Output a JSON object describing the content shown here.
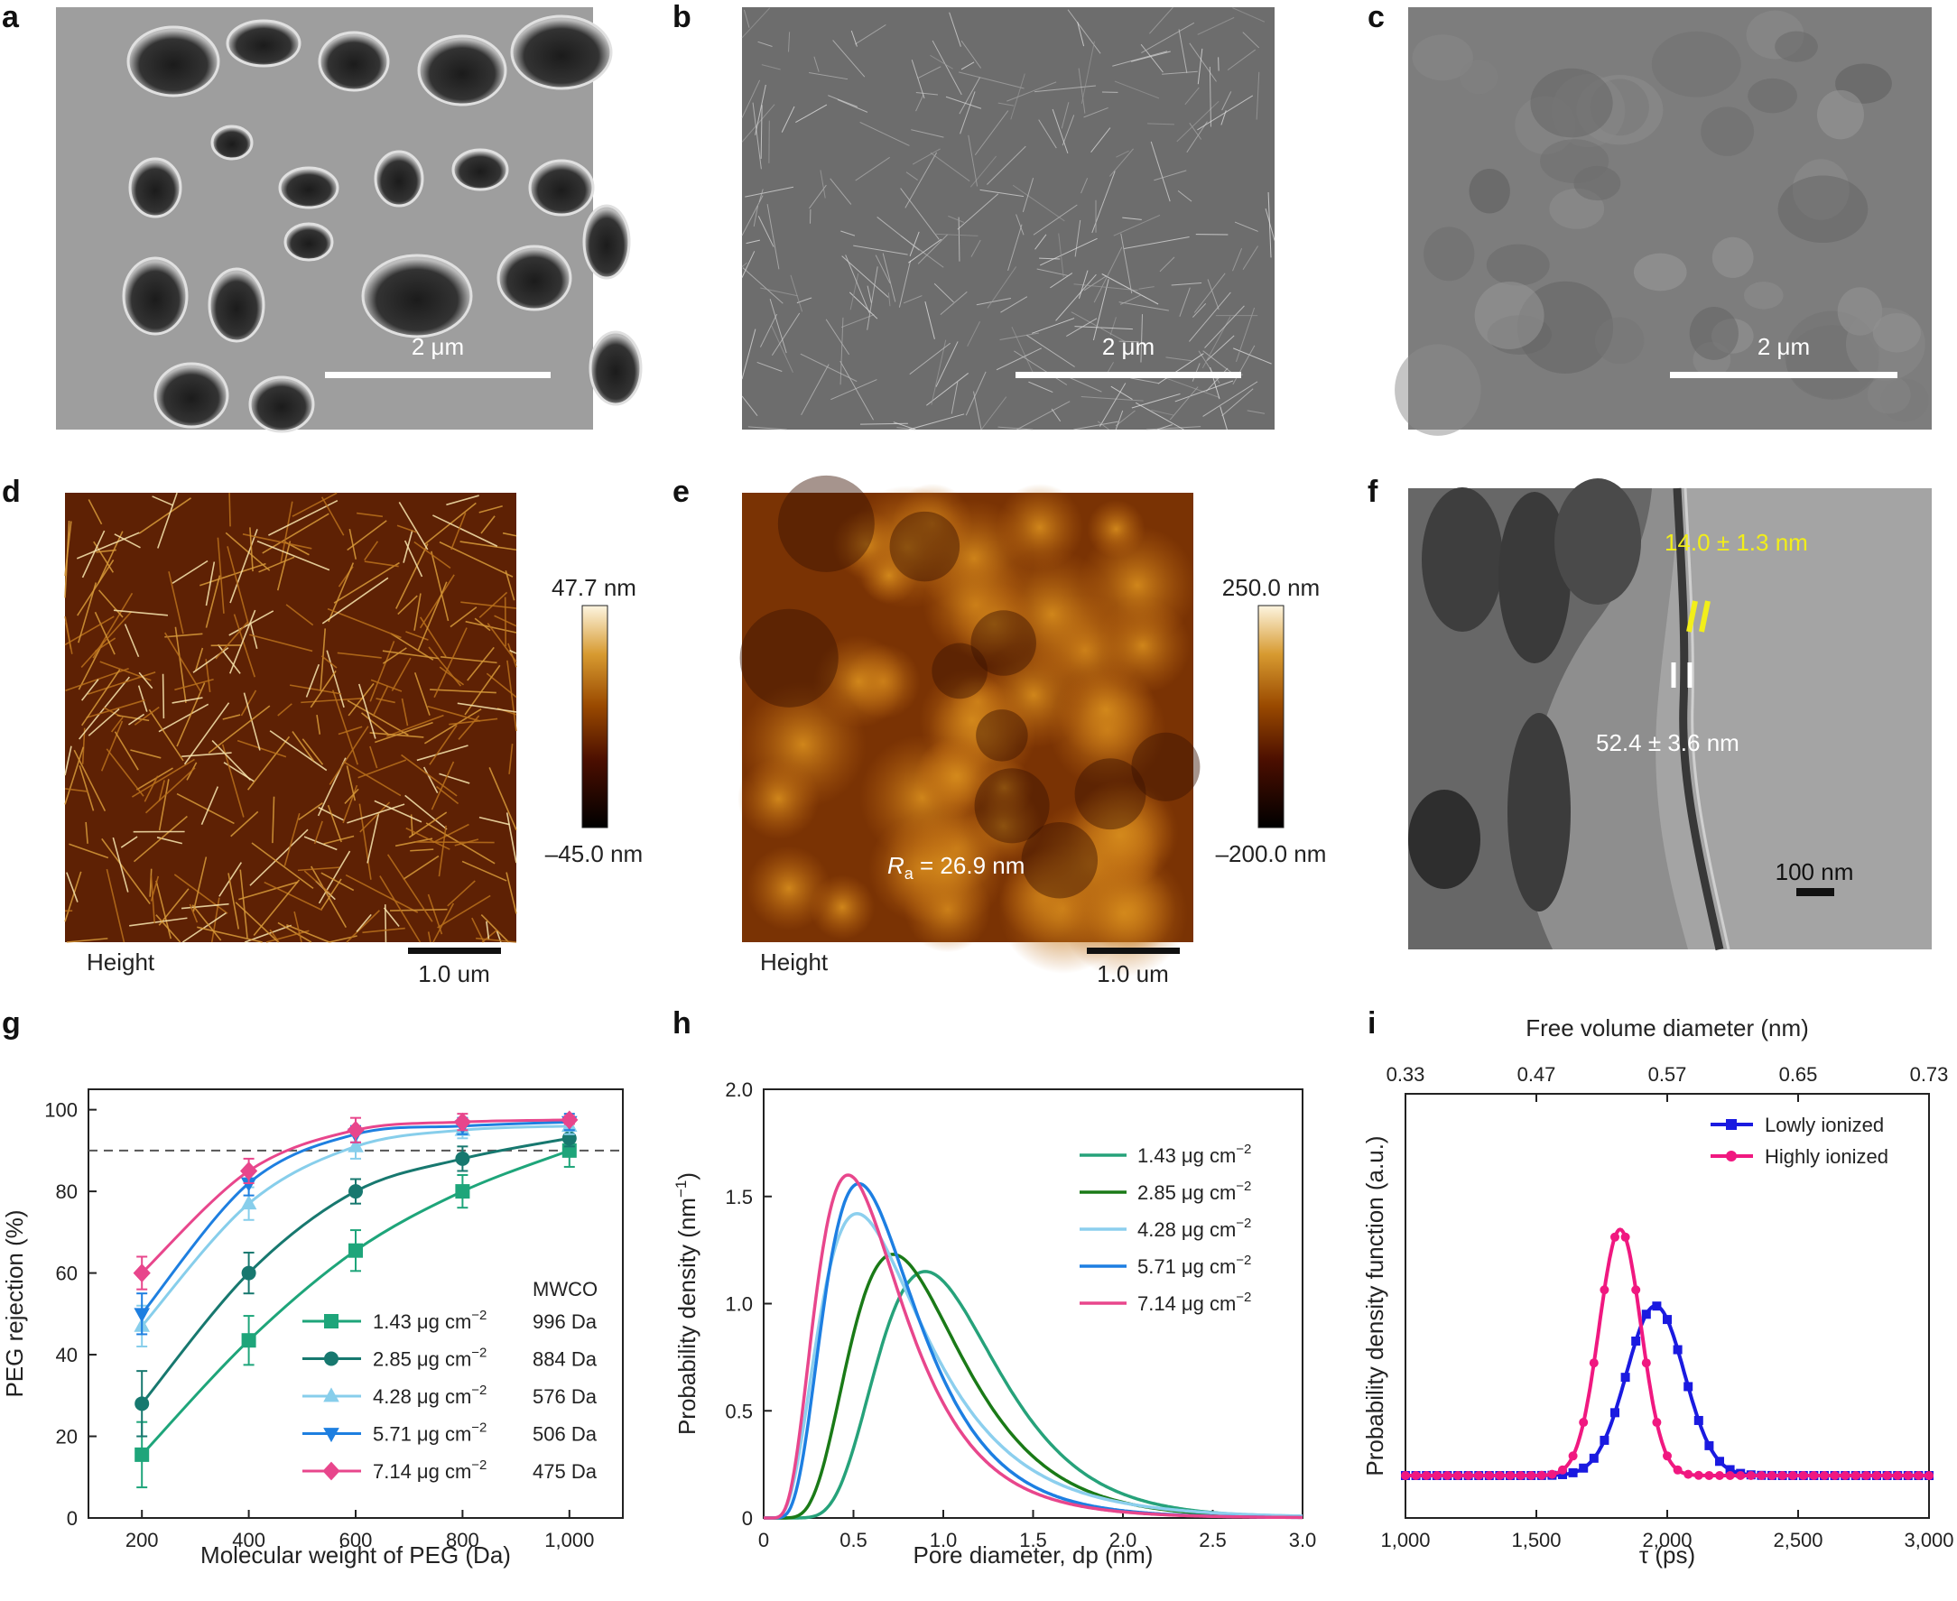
{
  "panels": {
    "a": {
      "label": "a",
      "scale": "2 μm"
    },
    "b": {
      "label": "b",
      "scale": "2 μm"
    },
    "c": {
      "label": "c",
      "scale": "2 μm"
    },
    "d": {
      "label": "d",
      "cb_max": "47.7 nm",
      "cb_min": "–45.0 nm",
      "mode": "Height",
      "scale": "1.0 um"
    },
    "e": {
      "label": "e",
      "cb_max": "250.0 nm",
      "cb_min": "–200.0 nm",
      "mode": "Height",
      "scale": "1.0 um",
      "ra_symbol": "R",
      "ra_sub": "a",
      "ra_value": " = 26.9 nm"
    },
    "f": {
      "label": "f",
      "m1": "14.0 ± 1.3 nm",
      "m2": "52.4 ± 3.6 nm",
      "scale": "100 nm"
    },
    "g": {
      "label": "g"
    },
    "h": {
      "label": "h"
    },
    "i": {
      "label": "i"
    }
  },
  "colors": {
    "s143": "#1ea57a",
    "s285": "#17786f",
    "s428": "#87ceeb",
    "s571": "#1e7fe0",
    "s714": "#e8468c",
    "h143": "#26a27a",
    "h285": "#1a7a17",
    "h428": "#8ccfee",
    "h571": "#1d7fe2",
    "h714": "#e8468c",
    "lowly": "#1a1ae0",
    "highly": "#f01880",
    "ref_line": "#555555"
  },
  "chart_data": [
    {
      "id": "g",
      "type": "line",
      "title": "",
      "xlabel": "Molecular weight of PEG (Da)",
      "ylabel": "PEG rejection (%)",
      "xlim": [
        100,
        1100
      ],
      "ylim": [
        0,
        105
      ],
      "xticks": [
        200,
        400,
        600,
        800,
        1000
      ],
      "xtick_labels": [
        "200",
        "400",
        "600",
        "800",
        "1,000"
      ],
      "yticks": [
        0,
        20,
        40,
        60,
        80,
        100
      ],
      "ytick_labels": [
        "0",
        "20",
        "40",
        "60",
        "80",
        "100"
      ],
      "reference_line": 90,
      "legend_header": "MWCO",
      "x": [
        200,
        400,
        600,
        800,
        1000
      ],
      "series": [
        {
          "name": "1.43 μg cm",
          "sup": "−2",
          "mwco": "996 Da",
          "marker": "square",
          "color_key": "s143",
          "values": [
            15.5,
            43.5,
            65.5,
            80,
            90
          ],
          "errors": [
            8,
            6,
            5,
            4,
            4
          ]
        },
        {
          "name": "2.85 μg cm",
          "sup": "−2",
          "mwco": "884 Da",
          "marker": "circle",
          "color_key": "s285",
          "values": [
            28,
            60,
            80,
            88,
            93
          ],
          "errors": [
            8,
            5,
            3,
            3,
            2
          ]
        },
        {
          "name": "4.28 μg cm",
          "sup": "−2",
          "mwco": "576 Da",
          "marker": "triangle-up",
          "color_key": "s428",
          "values": [
            47,
            77,
            91,
            95,
            96
          ],
          "errors": [
            5,
            4,
            3,
            2,
            2
          ]
        },
        {
          "name": "5.71 μg cm",
          "sup": "−2",
          "mwco": "506 Da",
          "marker": "triangle-down",
          "color_key": "s571",
          "values": [
            50,
            82,
            94,
            96,
            97
          ],
          "errors": [
            5,
            3,
            2,
            2,
            2
          ]
        },
        {
          "name": "7.14 μg cm",
          "sup": "−2",
          "mwco": "475 Da",
          "marker": "diamond",
          "color_key": "s714",
          "values": [
            60,
            85,
            95,
            97,
            97.5
          ],
          "errors": [
            4,
            3,
            3,
            2,
            1
          ]
        }
      ]
    },
    {
      "id": "h",
      "type": "line",
      "title": "",
      "xlabel": "Pore diameter, dp (nm)",
      "ylabel": "Probability density (nm",
      "ylabel_sup": "−1",
      "ylabel_end": ")",
      "xlim": [
        0,
        3.0
      ],
      "ylim": [
        0,
        2.0
      ],
      "xticks": [
        0,
        0.5,
        1.0,
        1.5,
        2.0,
        2.5,
        3.0
      ],
      "xtick_labels": [
        "0",
        "0.5",
        "1.0",
        "1.5",
        "2.0",
        "2.5",
        "3.0"
      ],
      "yticks": [
        0,
        0.5,
        1.0,
        1.5,
        2.0
      ],
      "ytick_labels": [
        "0",
        "0.5",
        "1.0",
        "1.5",
        "2.0"
      ],
      "distribution": "log-normal",
      "series": [
        {
          "name": "1.43 μg cm",
          "sup": "−2",
          "color_key": "h143",
          "peak_x": 0.9,
          "peak_y": 1.15,
          "sigma": 0.37
        },
        {
          "name": "2.85 μg cm",
          "sup": "−2",
          "color_key": "h285",
          "peak_x": 0.72,
          "peak_y": 1.23,
          "sigma": 0.43
        },
        {
          "name": "4.28 μg cm",
          "sup": "−2",
          "color_key": "h428",
          "peak_x": 0.52,
          "peak_y": 1.42,
          "sigma": 0.55
        },
        {
          "name": "5.71 μg cm",
          "sup": "−2",
          "color_key": "h571",
          "peak_x": 0.53,
          "peak_y": 1.56,
          "sigma": 0.48
        },
        {
          "name": "7.14 μg cm",
          "sup": "−2",
          "color_key": "h714",
          "peak_x": 0.47,
          "peak_y": 1.6,
          "sigma": 0.51
        }
      ]
    },
    {
      "id": "i",
      "type": "line",
      "title": "",
      "xlabel": "τ (ps)",
      "ylabel": "Probability density function (a.u.)",
      "top_xlabel": "Free volume diameter (nm)",
      "xlim": [
        1000,
        3000
      ],
      "ylim": [
        0,
        1
      ],
      "xticks": [
        1000,
        1500,
        2000,
        2500,
        3000
      ],
      "xtick_labels": [
        "1,000",
        "1,500",
        "2,000",
        "2,500",
        "3,000"
      ],
      "top_tick_labels": [
        "0.33",
        "0.47",
        "0.57",
        "0.65",
        "0.73"
      ],
      "baseline": 0.1,
      "series": [
        {
          "name": "Lowly ionized",
          "marker": "square",
          "color_key": "lowly",
          "center": 1955,
          "amplitude": 0.4,
          "width": 110
        },
        {
          "name": "Highly ionized",
          "marker": "circle",
          "color_key": "highly",
          "center": 1820,
          "amplitude": 0.58,
          "width": 80
        }
      ]
    }
  ]
}
